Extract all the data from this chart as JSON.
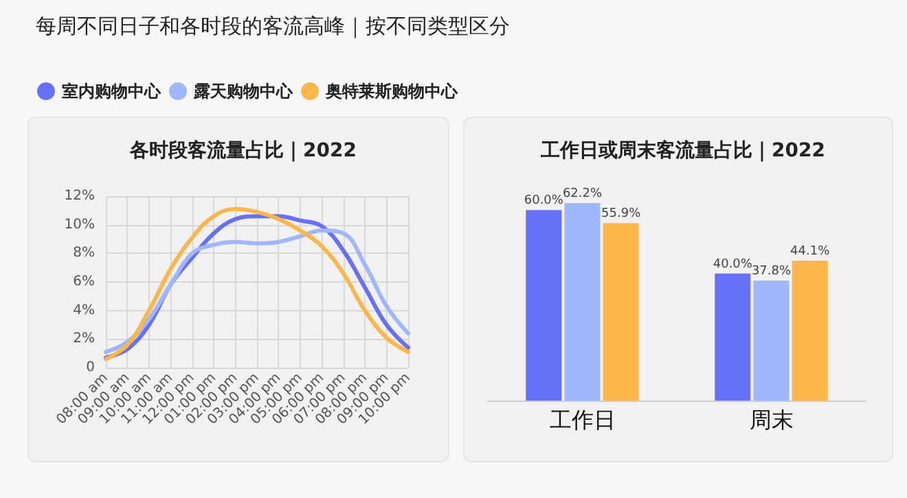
{
  "chart_data": [
    {
      "type": "line",
      "title": "各时段客流量占比｜2022",
      "annotations": [
        "每周不同日子和各时段的客流高峰｜按不同类型区分"
      ],
      "categories": [
        "08:00 am",
        "09:00 am",
        "10:00 am",
        "11:00 am",
        "12:00 pm",
        "01:00 pm",
        "02:00 pm",
        "03:00 pm",
        "04:00 pm",
        "05:00 pm",
        "06:00 pm",
        "07:00 pm",
        "08:00 pm",
        "09:00 pm",
        "10:00 pm"
      ],
      "series": [
        {
          "name": "室内购物中心",
          "color": "#6670f8",
          "values": [
            0.7,
            1.3,
            3.0,
            5.8,
            7.7,
            9.4,
            10.4,
            10.6,
            10.6,
            10.3,
            9.9,
            8.2,
            5.6,
            3.0,
            1.4
          ]
        },
        {
          "name": "露天购物中心",
          "color": "#a0b8fb",
          "values": [
            1.1,
            1.8,
            3.4,
            5.8,
            8.0,
            8.6,
            8.8,
            8.7,
            8.8,
            9.2,
            9.6,
            9.4,
            7.2,
            4.3,
            2.4
          ]
        },
        {
          "name": "奥特莱斯购物中心",
          "color": "#fbb74c",
          "values": [
            0.6,
            1.6,
            4.0,
            6.9,
            9.1,
            10.6,
            11.1,
            10.9,
            10.4,
            9.6,
            8.5,
            6.6,
            4.0,
            2.1,
            1.1
          ]
        }
      ],
      "ylim": [
        0,
        12
      ],
      "yticks": [
        0,
        {
          "value": 2,
          "label": "2%"
        },
        {
          "value": 4,
          "label": "4%"
        },
        {
          "value": 6,
          "label": "6%"
        },
        {
          "value": 8,
          "label": "8%"
        },
        {
          "value": 10,
          "label": "10%"
        },
        {
          "value": 12,
          "label": "12%"
        }
      ],
      "grid": true,
      "legend": "top left",
      "marker": "none",
      "line_style": "solid"
    },
    {
      "type": "bar",
      "title": "工作日或周末客流量占比｜2022",
      "categories": [
        "工作日",
        "周末"
      ],
      "series": [
        {
          "color": "#6670f8",
          "values": [
            60.0,
            40.0
          ],
          "value_labels": [
            "60.0%",
            "40.0%"
          ]
        },
        {
          "color": "#a0b8fb",
          "values": [
            62.2,
            37.8
          ],
          "value_labels": [
            "62.2%",
            "37.8%"
          ]
        },
        {
          "color": "#fbb74c",
          "values": [
            55.9,
            44.1
          ],
          "value_labels": [
            "55.9%",
            "44.1%"
          ]
        }
      ],
      "tick_labels": "x"
    }
  ]
}
